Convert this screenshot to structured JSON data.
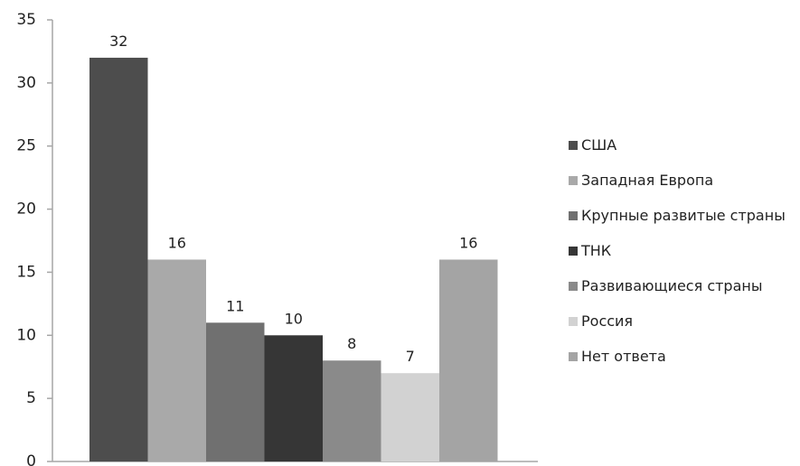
{
  "chart_data": {
    "type": "bar",
    "title": "",
    "xlabel": "",
    "ylabel": "",
    "ylim": [
      0,
      35
    ],
    "yticks": [
      0,
      5,
      10,
      15,
      20,
      25,
      30,
      35
    ],
    "grid": false,
    "legend_position": "right",
    "series": [
      {
        "name": "США",
        "value": 32,
        "color": "#4d4d4d"
      },
      {
        "name": "Западная Европа",
        "value": 16,
        "color": "#a9a9a9"
      },
      {
        "name": "Крупные развитые страны",
        "value": 11,
        "color": "#707070"
      },
      {
        "name": "ТНК",
        "value": 10,
        "color": "#363636"
      },
      {
        "name": "Развивающиеся страны",
        "value": 8,
        "color": "#8a8a8a"
      },
      {
        "name": "Россия",
        "value": 7,
        "color": "#d2d2d2"
      },
      {
        "name": "Нет ответа",
        "value": 16,
        "color": "#a4a4a4"
      }
    ]
  }
}
